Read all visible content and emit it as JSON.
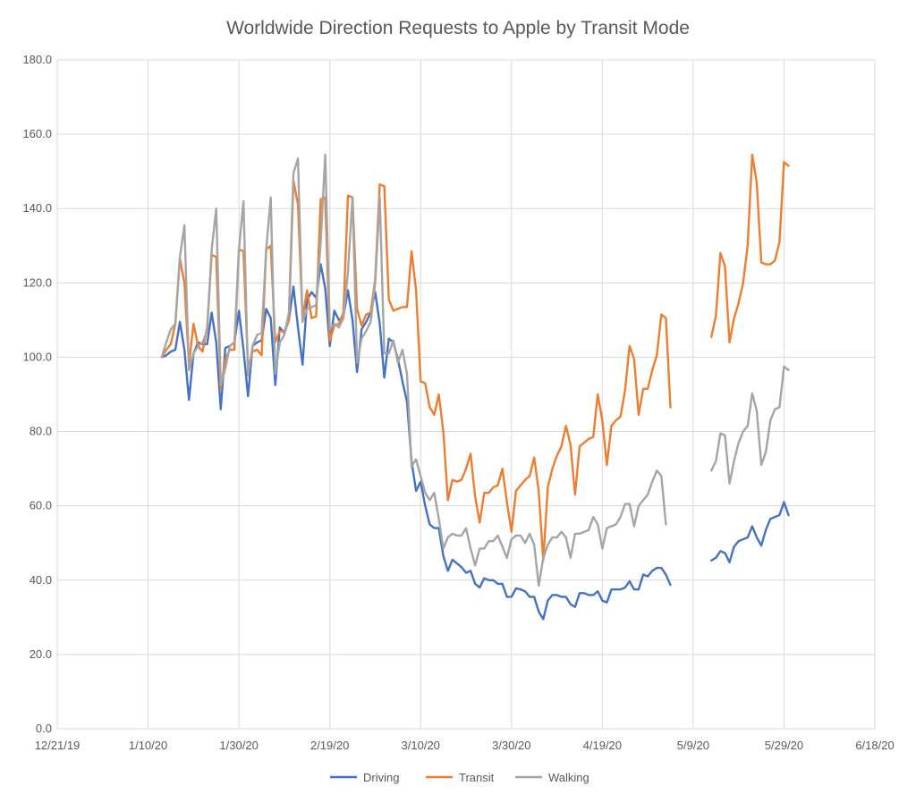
{
  "chart_data": {
    "type": "line",
    "title": "Worldwide Direction Requests to Apple by Transit Mode",
    "xlabel": "",
    "ylabel": "",
    "ylim": [
      0,
      180
    ],
    "xlim": [
      "2019-12-21",
      "2020-06-18"
    ],
    "y_ticks": [
      "0.0",
      "20.0",
      "40.0",
      "60.0",
      "80.0",
      "100.0",
      "120.0",
      "140.0",
      "160.0",
      "180.0"
    ],
    "x_ticks": [
      "12/21/19",
      "1/10/20",
      "1/30/20",
      "2/19/20",
      "3/10/20",
      "3/30/20",
      "4/19/20",
      "5/9/20",
      "5/29/20",
      "6/18/20"
    ],
    "grid": true,
    "legend_position": "bottom",
    "x_start": "2020-01-13",
    "series": [
      {
        "name": "Driving",
        "color": "#4472C4",
        "segments": [
          {
            "start": "2020-01-13",
            "values": [
              100,
              100.5,
              101.5,
              102,
              109.5,
              102,
              88.5,
              101,
              104,
              103.5,
              103.5,
              112,
              104,
              86,
              102.5,
              103,
              104,
              112.5,
              102,
              89.5,
              103,
              104,
              104.5,
              113,
              110.5,
              92.5,
              108,
              106.5,
              110,
              119,
              108,
              98,
              115.5,
              117.5,
              116,
              125,
              118.5,
              103,
              112.5,
              110,
              111,
              118,
              110,
              96,
              107.5,
              109.5,
              112,
              117.5,
              109,
              94.5,
              105,
              104,
              99.5,
              93.5,
              88,
              72,
              64,
              66.5,
              60,
              55,
              54,
              54,
              46.5,
              42.5,
              45.5,
              44.5,
              43.5,
              42,
              42.5,
              39,
              38,
              40.5,
              40,
              40,
              39,
              39,
              35.5,
              35.5,
              37.8,
              37.5,
              37,
              35.5,
              35.5,
              31.5,
              29.5,
              34.5,
              36,
              36,
              35.5,
              35.5,
              33.5,
              32.8,
              36.5,
              36.5,
              36,
              36,
              37,
              34.5,
              34,
              37.5,
              37.5,
              37.5,
              38,
              39.7,
              37.5,
              37.5,
              41.5,
              41,
              42.5,
              43.3,
              43.3,
              41.5,
              38.7
            ]
          },
          {
            "start": "2020-05-13",
            "values": [
              45.3,
              46,
              47.8,
              47.3,
              44.8,
              49,
              50.5,
              51,
              51.5,
              54.5,
              51.5,
              49.3,
              53.5,
              56.5,
              57,
              57.5,
              61,
              57.5
            ]
          }
        ]
      },
      {
        "name": "Transit",
        "color": "#ED7D31",
        "segments": [
          {
            "start": "2020-01-13",
            "values": [
              100,
              102,
              103.5,
              109,
              126.5,
              120,
              98,
              109,
              103,
              101.5,
              108,
              127.5,
              127,
              91.5,
              99.5,
              102,
              102,
              129,
              128.5,
              97,
              101.5,
              102,
              100.5,
              129,
              130,
              104,
              107,
              107,
              110,
              147.5,
              141,
              110.5,
              118,
              110.5,
              111,
              142.5,
              143,
              104.5,
              108.5,
              109,
              112,
              143.5,
              143,
              113,
              108.5,
              111.5,
              112,
              121,
              146.5,
              146,
              115.5,
              112.5,
              113,
              113.5,
              113.5,
              128.5,
              118,
              93.5,
              93,
              86.5,
              84.5,
              90,
              80,
              61.5,
              67,
              66.5,
              67,
              70,
              74,
              62.5,
              55.5,
              63.5,
              63.5,
              65,
              65.5,
              70,
              61,
              53,
              64,
              65.5,
              67,
              68,
              73,
              64,
              45.3,
              65,
              70,
              73.5,
              76,
              81.5,
              76.5,
              63,
              76,
              77,
              78,
              78.5,
              90,
              83,
              71,
              81.5,
              83,
              84,
              91,
              103,
              99.5,
              84.5,
              91.5,
              91.5,
              96.5,
              100.5,
              111.5,
              110.5,
              86.5
            ]
          },
          {
            "start": "2020-05-13",
            "values": [
              105.5,
              111,
              128,
              124.5,
              104,
              110.5,
              114.5,
              120,
              130,
              154.5,
              147,
              125.5,
              125,
              125,
              126,
              131,
              152.5,
              151.5
            ]
          }
        ]
      },
      {
        "name": "Walking",
        "color": "#A5A5A5",
        "segments": [
          {
            "start": "2020-01-13",
            "values": [
              100,
              104,
              107.5,
              109,
              127,
              135.5,
              96.5,
              101,
              103,
              104,
              107,
              129,
              140,
              92.5,
              97,
              103,
              104,
              129,
              142,
              95,
              103,
              106,
              106.5,
              129,
              143,
              95.5,
              104,
              106,
              112,
              149.5,
              153.5,
              109.5,
              113,
              113.5,
              114,
              131,
              154.5,
              107.5,
              109,
              108,
              110.5,
              123,
              143,
              98.5,
              105,
              107,
              109.5,
              120,
              143,
              101,
              101,
              104.5,
              98.5,
              102,
              95.5,
              70.5,
              72.5,
              68,
              63.5,
              61.5,
              63.5,
              56.5,
              48.5,
              51.5,
              52.5,
              52,
              52,
              54,
              48.5,
              44,
              48.5,
              48.5,
              50.5,
              50.5,
              52,
              49,
              46,
              51,
              52,
              52,
              50,
              52.5,
              49.5,
              38.5,
              46,
              49.5,
              51.5,
              51.5,
              53,
              51.5,
              46,
              52.5,
              52.5,
              53,
              53.5,
              57,
              55,
              48.5,
              54,
              54.5,
              55,
              57,
              60.5,
              60.5,
              54.5,
              60,
              61.5,
              63,
              66.5,
              69.5,
              68,
              55
            ]
          },
          {
            "start": "2020-05-13",
            "values": [
              69.5,
              72,
              79.5,
              79,
              66,
              72,
              77,
              80,
              81.5,
              90.3,
              85.5,
              71,
              74.5,
              83,
              86,
              86.5,
              97.5,
              96.5
            ]
          }
        ]
      }
    ]
  }
}
